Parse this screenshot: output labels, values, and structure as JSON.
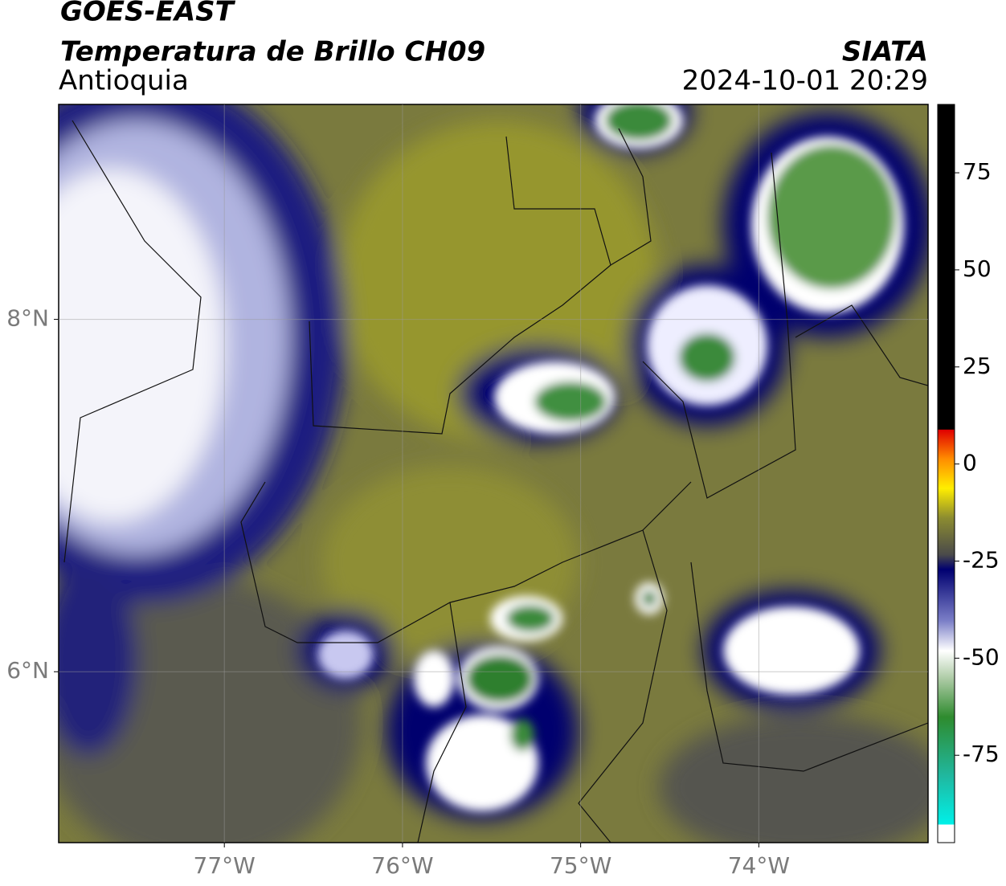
{
  "header": {
    "satellite": "GOES-EAST",
    "product": "Temperatura de Brillo CH09",
    "region": "Antioquia",
    "source": "SIATA",
    "datetime": "2024-10-01 20:29"
  },
  "map": {
    "xlim": [
      -77.93,
      -73.05
    ],
    "ylim": [
      5.03,
      9.22
    ],
    "xticks": [
      {
        "value": -77,
        "label": "77°W"
      },
      {
        "value": -76,
        "label": "76°W"
      },
      {
        "value": -75,
        "label": "75°W"
      },
      {
        "value": -74,
        "label": "74°W"
      }
    ],
    "yticks": [
      {
        "value": 8,
        "label": "8°N"
      },
      {
        "value": 6,
        "label": "6°N"
      }
    ]
  },
  "colorbar": {
    "lim": [
      -97.5,
      92.6
    ],
    "ticks": [
      75,
      50,
      25,
      0,
      -25,
      -50,
      -75
    ]
  }
}
